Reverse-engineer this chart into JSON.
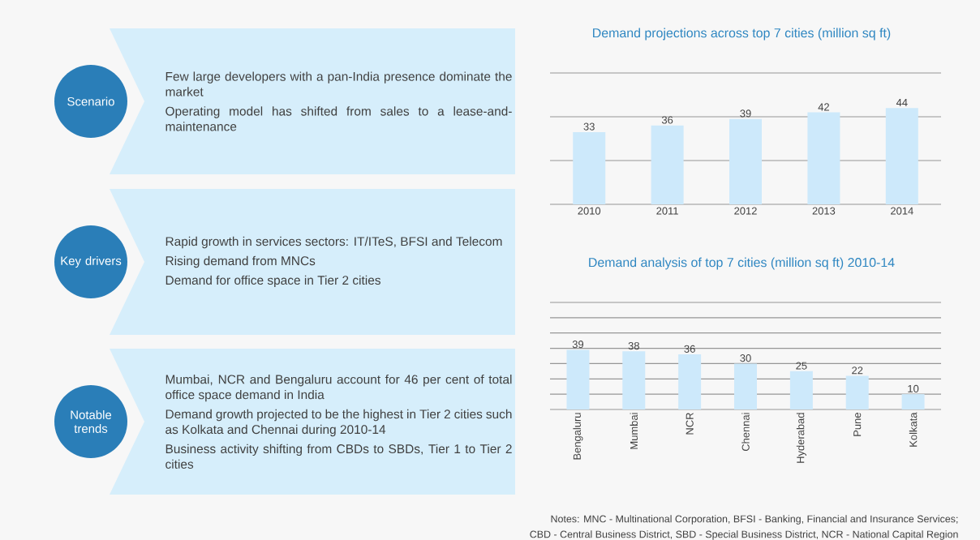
{
  "chart_data": [
    {
      "type": "other",
      "categories": [
        "Scenario",
        "Key drivers",
        "Notable trends"
      ],
      "annotations": [
        "Few large developers with a pan-India presence dominate the market",
        "Operating model has shifted from sales to a lease-and-maintenance",
        "Rapid growth in services sectors: IT/ITeS, BFSI and Telecom",
        "Rising demand from MNCs",
        "Demand for office space in Tier 2 cities",
        "Mumbai, NCR and Bengaluru account for 46 per cent of total office space demand in India",
        "Demand growth projected to be the highest in Tier 2 cities such as Kolkata and Chennai during 2010-14",
        "Business activity shifting from CBDs to SBDs, Tier 1 to Tier 2 cities"
      ]
    },
    {
      "type": "bar",
      "title": "Demand projections across top 7 cities (million sq ft)",
      "categories": [
        "2010",
        "2011",
        "2012",
        "2013",
        "2014"
      ],
      "values": [
        33,
        36,
        39,
        42,
        44
      ],
      "color": "#cde9fb",
      "ylim": [
        0,
        60
      ],
      "yticks": [
        {
          "value": 0,
          "label": null
        },
        {
          "value": 20,
          "label": null
        },
        {
          "value": 40,
          "label": null
        },
        {
          "value": 60,
          "label": null
        }
      ],
      "grid": "y",
      "tick_labels": "x",
      "data_labels": true
    },
    {
      "type": "bar",
      "title": "Demand analysis of top 7 cities (million sq ft) 2010-14",
      "categories": [
        "Bengaluru",
        "Mumbai",
        "NCR",
        "Chennai",
        "Hyderabad",
        "Pune",
        "Kolkata"
      ],
      "values": [
        39,
        38,
        36,
        30,
        25,
        22,
        10
      ],
      "color": "#cde9fb",
      "ylim": [
        0,
        70
      ],
      "yticks": [
        {
          "value": 0,
          "label": null
        },
        {
          "value": 10,
          "label": null
        },
        {
          "value": 20,
          "label": null
        },
        {
          "value": 30,
          "label": null
        },
        {
          "value": 40,
          "label": null
        },
        {
          "value": 50,
          "label": null
        },
        {
          "value": 60,
          "label": null
        },
        {
          "value": 70,
          "label": null
        }
      ],
      "grid": "y",
      "tick_labels": "x",
      "data_labels": true,
      "annotations": [
        "Notes: MNC - Multinational Corporation, BFSI - Banking, Financial and Insurance Services;",
        "CBD - Central Business District, SBD - Special Business District, NCR - National Capital Region"
      ]
    }
  ]
}
